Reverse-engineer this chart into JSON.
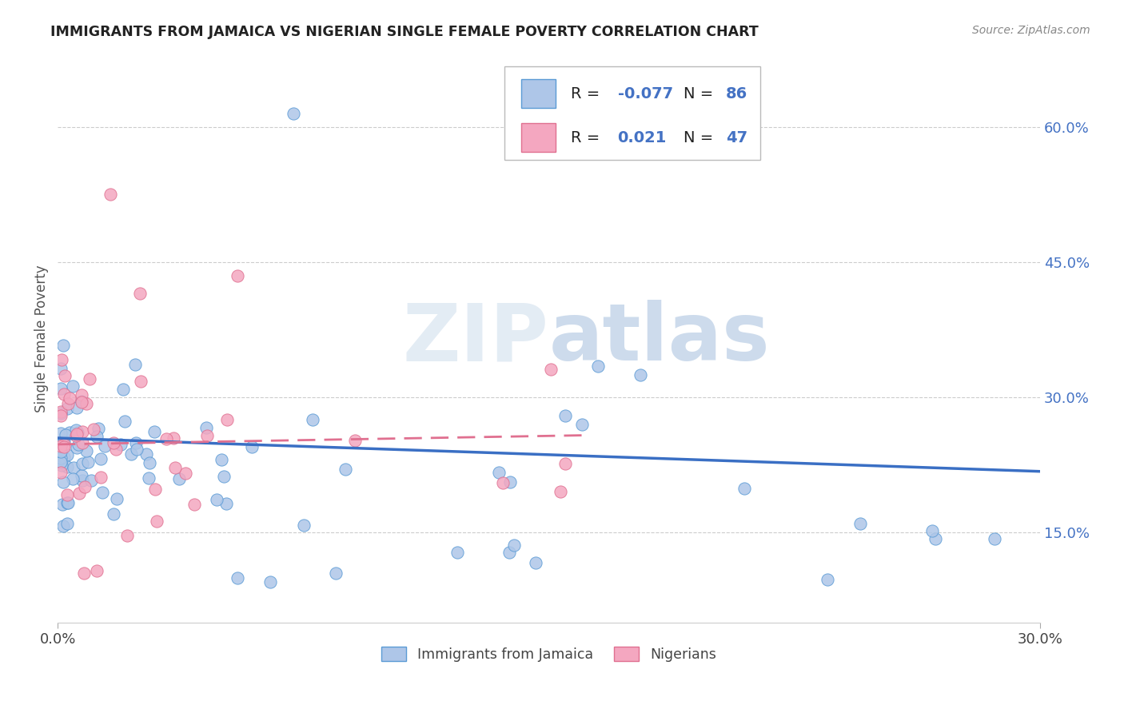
{
  "title": "IMMIGRANTS FROM JAMAICA VS NIGERIAN SINGLE FEMALE POVERTY CORRELATION CHART",
  "source": "Source: ZipAtlas.com",
  "ylabel": "Single Female Poverty",
  "y_ticks": [
    0.15,
    0.3,
    0.45,
    0.6
  ],
  "y_tick_labels": [
    "15.0%",
    "30.0%",
    "45.0%",
    "60.0%"
  ],
  "x_min": 0.0,
  "x_max": 0.3,
  "y_min": 0.05,
  "y_max": 0.68,
  "legend_label1": "Immigrants from Jamaica",
  "legend_label2": "Nigerians",
  "R1": -0.077,
  "N1": 86,
  "R2": 0.021,
  "N2": 47,
  "color_blue": "#aec6e8",
  "color_pink": "#f4a7c0",
  "color_blue_edge": "#5b9bd5",
  "color_pink_edge": "#e07090",
  "color_blue_line": "#3a6fc4",
  "color_pink_line": "#e07090",
  "color_blue_text": "#4472c4",
  "watermark_zip": "ZIP",
  "watermark_atlas": "atlas",
  "line1_x0": 0.0,
  "line1_y0": 0.255,
  "line1_x1": 0.3,
  "line1_y1": 0.218,
  "line2_x0": 0.0,
  "line2_y0": 0.248,
  "line2_x1": 0.16,
  "line2_y1": 0.258
}
